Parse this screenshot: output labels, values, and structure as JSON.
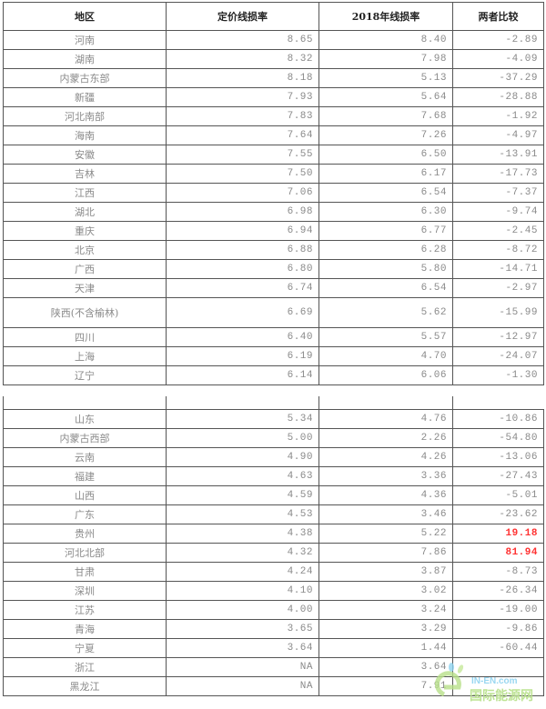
{
  "headers": [
    "地区",
    "定价线损率",
    "2018年线损率",
    "两者比较"
  ],
  "table1": [
    [
      "河南",
      "8.65",
      "8.40",
      "-2.89"
    ],
    [
      "湖南",
      "8.32",
      "7.98",
      "-4.09"
    ],
    [
      "内蒙古东部",
      "8.18",
      "5.13",
      "-37.29"
    ],
    [
      "新疆",
      "7.93",
      "5.64",
      "-28.88"
    ],
    [
      "河北南部",
      "7.83",
      "7.68",
      "-1.92"
    ],
    [
      "海南",
      "7.64",
      "7.26",
      "-4.97"
    ],
    [
      "安徽",
      "7.55",
      "6.50",
      "-13.91"
    ],
    [
      "吉林",
      "7.50",
      "6.17",
      "-17.73"
    ],
    [
      "江西",
      "7.06",
      "6.54",
      "-7.37"
    ],
    [
      "湖北",
      "6.98",
      "6.30",
      "-9.74"
    ],
    [
      "重庆",
      "6.94",
      "6.77",
      "-2.45"
    ],
    [
      "北京",
      "6.88",
      "6.28",
      "-8.72"
    ],
    [
      "广西",
      "6.80",
      "5.80",
      "-14.71"
    ],
    [
      "天津",
      "6.74",
      "6.54",
      "-2.97"
    ],
    [
      "陕西(不含榆林)",
      "6.69",
      "5.62",
      "-15.99"
    ],
    [
      "四川",
      "6.40",
      "5.57",
      "-12.97"
    ],
    [
      "上海",
      "6.19",
      "4.70",
      "-24.07"
    ],
    [
      "辽宁",
      "6.14",
      "6.06",
      "-1.30"
    ]
  ],
  "table2": [
    [
      "山东",
      "5.34",
      "4.76",
      "-10.86"
    ],
    [
      "内蒙古西部",
      "5.00",
      "2.26",
      "-54.80"
    ],
    [
      "云南",
      "4.90",
      "4.26",
      "-13.06"
    ],
    [
      "福建",
      "4.63",
      "3.36",
      "-27.43"
    ],
    [
      "山西",
      "4.59",
      "4.36",
      "-5.01"
    ],
    [
      "广东",
      "4.53",
      "3.46",
      "-23.62"
    ],
    [
      "贵州",
      "4.38",
      "5.22",
      "19.18"
    ],
    [
      "河北北部",
      "4.32",
      "7.86",
      "81.94"
    ],
    [
      "甘肃",
      "4.24",
      "3.87",
      "-8.73"
    ],
    [
      "深圳",
      "4.10",
      "3.02",
      "-26.34"
    ],
    [
      "江苏",
      "4.00",
      "3.24",
      "-19.00"
    ],
    [
      "青海",
      "3.65",
      "3.29",
      "-9.86"
    ],
    [
      "宁夏",
      "3.64",
      "1.44",
      "-60.44"
    ],
    [
      "浙江",
      "NA",
      "3.64",
      ""
    ],
    [
      "黑龙江",
      "NA",
      "7.91",
      ""
    ]
  ],
  "highlight_color": "#ff3333",
  "watermark": {
    "line1": "IN-EN.com",
    "line2": "国际能源网"
  }
}
